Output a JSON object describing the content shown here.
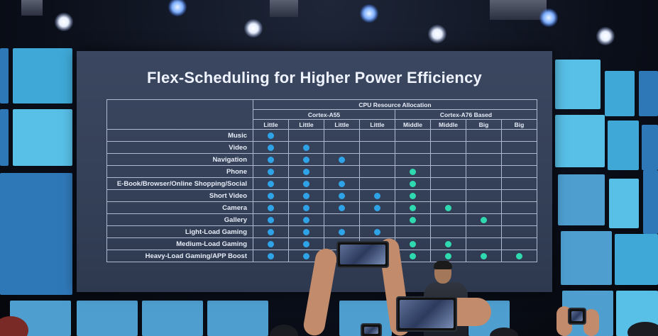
{
  "slide": {
    "title": "Flex-Scheduling for Higher Power Efficiency",
    "table": {
      "group_header": "CPU Resource Allocation",
      "clusters": [
        {
          "name": "Cortex-A55",
          "span": 4
        },
        {
          "name": "Cortex-A76 Based",
          "span": 4
        }
      ],
      "columns": [
        "Little",
        "Little",
        "Little",
        "Little",
        "Middle",
        "Middle",
        "Big",
        "Big"
      ],
      "rows": [
        {
          "app": "Music",
          "cores": [
            1,
            0,
            0,
            0,
            0,
            0,
            0,
            0
          ]
        },
        {
          "app": "Video",
          "cores": [
            1,
            1,
            0,
            0,
            0,
            0,
            0,
            0
          ]
        },
        {
          "app": "Navigation",
          "cores": [
            1,
            1,
            1,
            0,
            0,
            0,
            0,
            0
          ]
        },
        {
          "app": "Phone",
          "cores": [
            1,
            1,
            0,
            0,
            1,
            0,
            0,
            0
          ]
        },
        {
          "app": "E-Book/Browser/Online Shopping/Social",
          "cores": [
            1,
            1,
            1,
            0,
            1,
            0,
            0,
            0
          ]
        },
        {
          "app": "Short Video",
          "cores": [
            1,
            1,
            1,
            1,
            1,
            0,
            0,
            0
          ]
        },
        {
          "app": "Camera",
          "cores": [
            1,
            1,
            1,
            1,
            1,
            1,
            0,
            0
          ]
        },
        {
          "app": "Gallery",
          "cores": [
            1,
            1,
            0,
            0,
            1,
            0,
            1,
            0
          ]
        },
        {
          "app": "Light-Load Gaming",
          "cores": [
            1,
            1,
            1,
            1,
            0,
            0,
            0,
            0
          ]
        },
        {
          "app": "Medium-Load Gaming",
          "cores": [
            1,
            1,
            1,
            1,
            1,
            1,
            0,
            0
          ]
        },
        {
          "app": "Heavy-Load Gaming/APP Boost",
          "cores": [
            1,
            1,
            1,
            1,
            1,
            1,
            1,
            1
          ]
        }
      ],
      "colors": {
        "a55_dot": "#2ea3e8",
        "a76_dot": "#2fdab0"
      }
    }
  }
}
